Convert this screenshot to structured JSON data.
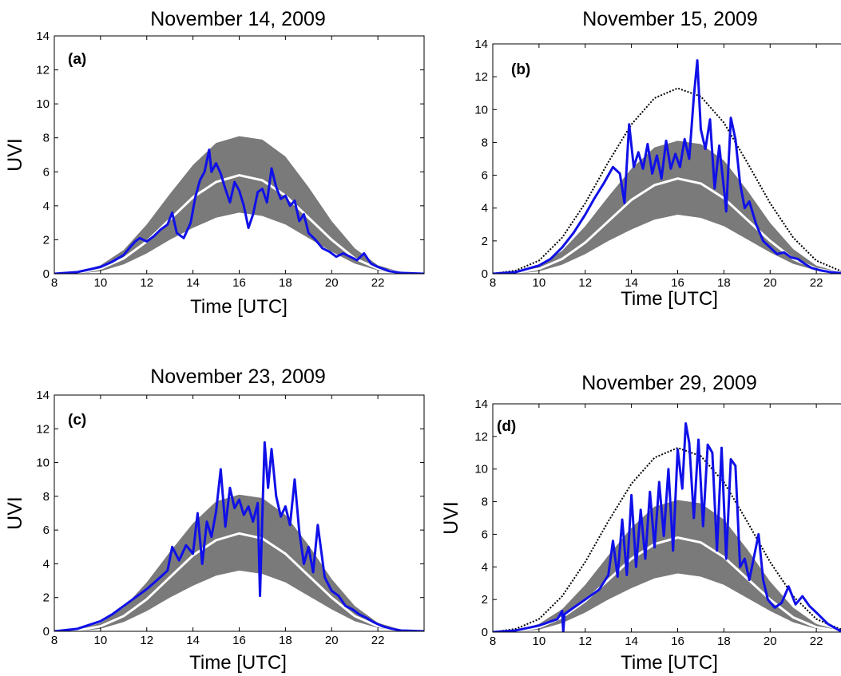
{
  "figure": {
    "colors": {
      "observed": "#1010e8",
      "band": "#7a7a7a",
      "median": "#ffffff",
      "clear_sky": "#000000"
    }
  },
  "chart_data": [
    {
      "type": "line",
      "panel_label": "(a)",
      "title": "November 14, 2009",
      "xlabel": "Time [UTC]",
      "ylabel": "UVI",
      "xlim": [
        8,
        24
      ],
      "ylim": [
        0,
        14
      ],
      "xticks": [
        8,
        10,
        12,
        14,
        16,
        18,
        20,
        22
      ],
      "yticks": [
        0,
        2,
        4,
        6,
        8,
        10,
        12,
        14
      ],
      "grid": false,
      "band": {
        "x": [
          8,
          9,
          10,
          11,
          12,
          13,
          14,
          15,
          16,
          17,
          18,
          19,
          20,
          21,
          22,
          23,
          24
        ],
        "upper": [
          0,
          0.1,
          0.5,
          1.4,
          2.9,
          4.7,
          6.4,
          7.7,
          8.1,
          7.9,
          6.9,
          5.1,
          3.1,
          1.5,
          0.5,
          0.1,
          0
        ],
        "lower": [
          0,
          0,
          0.15,
          0.55,
          1.2,
          2.0,
          2.7,
          3.3,
          3.6,
          3.4,
          2.9,
          2.1,
          1.3,
          0.6,
          0.2,
          0,
          0
        ]
      },
      "median": {
        "x": [
          8,
          9,
          10,
          11,
          12,
          13,
          14,
          15,
          16,
          17,
          18,
          19,
          20,
          21,
          22,
          23,
          24
        ],
        "y": [
          0,
          0.05,
          0.3,
          0.9,
          1.9,
          3.2,
          4.5,
          5.4,
          5.8,
          5.5,
          4.6,
          3.3,
          2.0,
          0.9,
          0.3,
          0.05,
          0
        ]
      },
      "clear_sky": null,
      "observed": {
        "x": [
          8,
          9,
          10,
          10.5,
          11,
          11.3,
          11.5,
          11.7,
          12,
          12.3,
          12.6,
          12.9,
          13.1,
          13.3,
          13.6,
          13.9,
          14.1,
          14.3,
          14.5,
          14.7,
          14.8,
          15.0,
          15.2,
          15.4,
          15.6,
          15.8,
          16.0,
          16.2,
          16.4,
          16.6,
          16.8,
          17.0,
          17.2,
          17.4,
          17.6,
          17.8,
          18.0,
          18.2,
          18.4,
          18.6,
          18.8,
          19.0,
          19.3,
          19.6,
          19.9,
          20.2,
          20.5,
          20.8,
          21.1,
          21.4,
          21.7,
          22,
          22.5,
          23,
          24
        ],
        "y": [
          0,
          0.1,
          0.4,
          0.7,
          1.1,
          1.6,
          1.9,
          2.1,
          1.9,
          2.2,
          2.6,
          2.9,
          3.6,
          2.4,
          2.1,
          3.0,
          4.5,
          5.5,
          6.0,
          7.3,
          6.0,
          6.5,
          5.9,
          5.0,
          4.2,
          5.4,
          4.9,
          4.0,
          2.7,
          3.5,
          4.8,
          5.0,
          4.2,
          6.2,
          5.1,
          4.4,
          4.6,
          4.0,
          4.3,
          3.1,
          3.5,
          2.4,
          2.0,
          1.5,
          1.3,
          1.0,
          1.2,
          1.0,
          0.8,
          1.2,
          0.6,
          0.4,
          0.15,
          0.05,
          0
        ]
      }
    },
    {
      "type": "line",
      "panel_label": "(b)",
      "title": "November 15, 2009",
      "xlabel": "Time [UTC]",
      "ylabel": "",
      "xlim": [
        8,
        24
      ],
      "ylim": [
        0,
        14
      ],
      "xticks": [
        8,
        10,
        12,
        14,
        16,
        18,
        20,
        22
      ],
      "yticks": [
        0,
        2,
        4,
        6,
        8,
        10,
        12,
        14
      ],
      "grid": false,
      "band": {
        "x": [
          8,
          9,
          10,
          11,
          12,
          13,
          14,
          15,
          16,
          17,
          18,
          19,
          20,
          21,
          22,
          23,
          24
        ],
        "upper": [
          0,
          0.1,
          0.5,
          1.4,
          2.9,
          4.7,
          6.4,
          7.7,
          8.1,
          7.9,
          6.9,
          5.1,
          3.1,
          1.5,
          0.5,
          0.1,
          0
        ],
        "lower": [
          0,
          0,
          0.15,
          0.55,
          1.2,
          2.0,
          2.7,
          3.3,
          3.6,
          3.4,
          2.9,
          2.1,
          1.3,
          0.6,
          0.2,
          0,
          0
        ]
      },
      "median": {
        "x": [
          8,
          9,
          10,
          11,
          12,
          13,
          14,
          15,
          16,
          17,
          18,
          19,
          20,
          21,
          22,
          23,
          24
        ],
        "y": [
          0,
          0.05,
          0.3,
          0.9,
          1.9,
          3.2,
          4.5,
          5.4,
          5.8,
          5.5,
          4.6,
          3.3,
          2.0,
          0.9,
          0.3,
          0.05,
          0
        ]
      },
      "clear_sky": {
        "x": [
          8,
          9,
          10,
          11,
          12,
          13,
          14,
          15,
          16,
          17,
          18,
          19,
          20,
          21,
          22,
          23,
          24
        ],
        "y": [
          0,
          0.2,
          0.8,
          2.2,
          4.3,
          6.8,
          9.1,
          10.7,
          11.3,
          10.8,
          9.2,
          6.8,
          4.3,
          2.2,
          0.8,
          0.2,
          0
        ]
      },
      "observed": {
        "x": [
          8,
          9,
          10,
          10.5,
          11,
          11.5,
          12,
          12.4,
          12.8,
          13.2,
          13.5,
          13.7,
          13.9,
          14.1,
          14.3,
          14.5,
          14.7,
          14.9,
          15.1,
          15.3,
          15.5,
          15.7,
          15.9,
          16.1,
          16.3,
          16.5,
          16.7,
          16.85,
          17.0,
          17.2,
          17.4,
          17.6,
          17.8,
          18.0,
          18.1,
          18.3,
          18.5,
          18.7,
          18.9,
          19.1,
          19.4,
          19.7,
          20.0,
          20.3,
          20.6,
          20.9,
          21.2,
          21.5,
          21.8,
          22.2,
          22.6,
          23,
          24
        ],
        "y": [
          0,
          0.1,
          0.5,
          0.9,
          1.6,
          2.5,
          3.6,
          4.6,
          5.5,
          6.5,
          6.1,
          4.3,
          9.1,
          6.5,
          7.4,
          6.4,
          7.9,
          6.1,
          7.2,
          5.8,
          8.1,
          6.4,
          7.3,
          6.5,
          8.2,
          7.0,
          10.8,
          13.0,
          8.8,
          7.6,
          9.4,
          5.2,
          7.8,
          5.2,
          3.8,
          9.5,
          8.2,
          5.5,
          4.0,
          4.4,
          3.0,
          2.0,
          1.6,
          1.2,
          1.3,
          1.0,
          0.9,
          0.6,
          0.35,
          0.2,
          0.1,
          0.05,
          0
        ]
      }
    },
    {
      "type": "line",
      "panel_label": "(c)",
      "title": "November 23, 2009",
      "xlabel": "Time [UTC]",
      "ylabel": "UVI",
      "xlim": [
        8,
        24
      ],
      "ylim": [
        0,
        14
      ],
      "xticks": [
        8,
        10,
        12,
        14,
        16,
        18,
        20,
        22
      ],
      "yticks": [
        0,
        2,
        4,
        6,
        8,
        10,
        12,
        14
      ],
      "grid": false,
      "band": {
        "x": [
          8,
          9,
          10,
          11,
          12,
          13,
          14,
          15,
          16,
          17,
          18,
          19,
          20,
          21,
          22,
          23,
          24
        ],
        "upper": [
          0,
          0.1,
          0.5,
          1.4,
          2.9,
          4.7,
          6.4,
          7.7,
          8.1,
          7.9,
          6.9,
          5.1,
          3.1,
          1.5,
          0.5,
          0.1,
          0
        ],
        "lower": [
          0,
          0,
          0.15,
          0.55,
          1.2,
          2.0,
          2.7,
          3.3,
          3.6,
          3.4,
          2.9,
          2.1,
          1.3,
          0.6,
          0.2,
          0,
          0
        ]
      },
      "median": {
        "x": [
          8,
          9,
          10,
          11,
          12,
          13,
          14,
          15,
          16,
          17,
          18,
          19,
          20,
          21,
          22,
          23,
          24
        ],
        "y": [
          0,
          0.05,
          0.3,
          0.9,
          1.9,
          3.2,
          4.5,
          5.4,
          5.8,
          5.5,
          4.6,
          3.3,
          2.0,
          0.9,
          0.3,
          0.05,
          0
        ]
      },
      "clear_sky": null,
      "observed": {
        "x": [
          8,
          9,
          10,
          10.5,
          11,
          11.5,
          12,
          12.5,
          12.9,
          13.1,
          13.4,
          13.7,
          14.0,
          14.2,
          14.4,
          14.6,
          14.8,
          15.0,
          15.2,
          15.4,
          15.6,
          15.8,
          16.0,
          16.2,
          16.4,
          16.6,
          16.8,
          16.9,
          17.0,
          17.1,
          17.25,
          17.4,
          17.6,
          17.8,
          18.0,
          18.2,
          18.4,
          18.6,
          18.8,
          19.0,
          19.2,
          19.4,
          19.7,
          20.0,
          20.3,
          20.6,
          20.9,
          21.2,
          21.5,
          21.8,
          22.2,
          22.6,
          23,
          24
        ],
        "y": [
          0,
          0.15,
          0.6,
          1.0,
          1.5,
          2.0,
          2.5,
          3.1,
          3.6,
          5.0,
          4.2,
          5.1,
          4.6,
          7.0,
          4.0,
          6.5,
          5.6,
          7.1,
          9.6,
          6.2,
          8.5,
          7.3,
          7.8,
          6.9,
          7.4,
          6.5,
          7.6,
          2.1,
          6.8,
          11.2,
          8.5,
          10.8,
          8.0,
          6.8,
          7.4,
          6.3,
          9.0,
          5.9,
          4.0,
          5.0,
          3.5,
          6.3,
          3.2,
          2.4,
          2.1,
          1.5,
          1.3,
          1.0,
          0.8,
          0.55,
          0.3,
          0.15,
          0.05,
          0
        ]
      }
    },
    {
      "type": "line",
      "panel_label": "(d)",
      "title": "November 29, 2009",
      "xlabel": "Time [UTC]",
      "ylabel": "UVI",
      "xlim": [
        8,
        24
      ],
      "ylim": [
        0,
        14
      ],
      "xticks": [
        8,
        10,
        12,
        14,
        16,
        18,
        20,
        22
      ],
      "yticks": [
        0,
        2,
        4,
        6,
        8,
        10,
        12,
        14
      ],
      "grid": false,
      "band": {
        "x": [
          8,
          9,
          10,
          11,
          12,
          13,
          14,
          15,
          16,
          17,
          18,
          19,
          20,
          21,
          22,
          23,
          24
        ],
        "upper": [
          0,
          0.1,
          0.5,
          1.4,
          2.9,
          4.7,
          6.4,
          7.7,
          8.1,
          7.9,
          6.9,
          5.1,
          3.1,
          1.5,
          0.5,
          0.1,
          0
        ],
        "lower": [
          0,
          0,
          0.15,
          0.55,
          1.2,
          2.0,
          2.7,
          3.3,
          3.6,
          3.4,
          2.9,
          2.1,
          1.3,
          0.6,
          0.2,
          0,
          0
        ]
      },
      "median": {
        "x": [
          8,
          9,
          10,
          11,
          12,
          13,
          14,
          15,
          16,
          17,
          18,
          19,
          20,
          21,
          22,
          23,
          24
        ],
        "y": [
          0,
          0.05,
          0.3,
          0.9,
          1.9,
          3.2,
          4.5,
          5.4,
          5.8,
          5.5,
          4.6,
          3.3,
          2.0,
          0.9,
          0.3,
          0.05,
          0
        ]
      },
      "clear_sky": {
        "x": [
          8,
          9,
          10,
          11,
          12,
          13,
          14,
          15,
          16,
          17,
          18,
          19,
          20,
          21,
          22,
          23,
          24
        ],
        "y": [
          0,
          0.2,
          0.8,
          2.2,
          4.3,
          6.8,
          9.1,
          10.7,
          11.3,
          10.8,
          9.2,
          6.8,
          4.3,
          2.2,
          0.8,
          0.2,
          0
        ]
      },
      "observed": {
        "x": [
          8,
          9,
          10,
          10.8,
          11.0,
          11.05,
          11.1,
          11.4,
          11.8,
          12.2,
          12.6,
          13.0,
          13.2,
          13.4,
          13.6,
          13.8,
          14.0,
          14.2,
          14.4,
          14.6,
          14.8,
          15.0,
          15.2,
          15.4,
          15.6,
          15.8,
          16.0,
          16.2,
          16.35,
          16.5,
          16.7,
          16.9,
          17.1,
          17.3,
          17.5,
          17.7,
          17.9,
          18.1,
          18.3,
          18.5,
          18.7,
          18.9,
          19.1,
          19.3,
          19.5,
          19.7,
          19.9,
          20.2,
          20.5,
          20.8,
          21.1,
          21.4,
          21.7,
          22.0,
          22.5,
          23,
          24
        ],
        "y": [
          0,
          0.1,
          0.4,
          0.8,
          1.3,
          0,
          1.1,
          1.4,
          1.8,
          2.2,
          2.6,
          3.5,
          5.6,
          3.4,
          6.9,
          3.5,
          8.4,
          4.0,
          7.5,
          4.5,
          8.6,
          5.2,
          9.2,
          5.9,
          10.0,
          5.0,
          11.2,
          8.8,
          12.8,
          11.6,
          7.0,
          11.8,
          6.5,
          11.5,
          11.0,
          5.0,
          11.3,
          4.5,
          10.6,
          10.2,
          4.0,
          4.5,
          3.2,
          4.6,
          6.0,
          3.2,
          2.0,
          1.5,
          1.8,
          2.8,
          1.7,
          2.2,
          1.6,
          1.2,
          0.5,
          0.1,
          0
        ]
      }
    }
  ]
}
